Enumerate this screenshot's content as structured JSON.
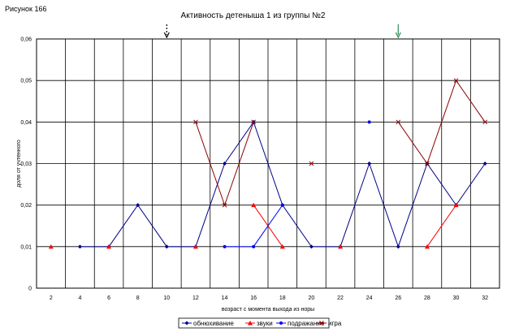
{
  "figure_label": "Рисунок 166",
  "chart_data": {
    "type": "line",
    "title": "Активность детеныша 1 из группы №2",
    "xlabel": "возраст с момента выхода из норы",
    "ylabel": "доля от учтенного",
    "categories": [
      "2",
      "4",
      "6",
      "8",
      "10",
      "12",
      "14",
      "16",
      "18",
      "20",
      "22",
      "24",
      "26",
      "28",
      "30",
      "32"
    ],
    "y_ticks": [
      "0",
      "0,01",
      "0,02",
      "0,03",
      "0,04",
      "0,05",
      "0,06"
    ],
    "ylim": [
      0,
      0.06
    ],
    "grid": true,
    "legend_position": "bottom",
    "series": [
      {
        "name": "обнюхивание",
        "color": "#00008b",
        "marker": "diamond",
        "values": [
          null,
          0.01,
          0.01,
          0.02,
          0.01,
          0.01,
          0.03,
          0.04,
          0.02,
          0.01,
          0.01,
          0.03,
          0.01,
          0.03,
          0.02,
          0.03
        ]
      },
      {
        "name": "звуки",
        "color": "#ff0000",
        "marker": "triangle",
        "values": [
          0.01,
          null,
          0.01,
          null,
          null,
          0.01,
          null,
          0.02,
          0.01,
          null,
          0.01,
          null,
          null,
          0.01,
          0.02,
          null
        ]
      },
      {
        "name": "подражание",
        "color": "#0000ff",
        "marker": "dot",
        "values": [
          null,
          null,
          null,
          null,
          null,
          null,
          0.01,
          0.01,
          0.02,
          null,
          null,
          0.04,
          null,
          null,
          null,
          null
        ]
      },
      {
        "name": "игра",
        "color": "#8b0000",
        "marker": "x",
        "values": [
          null,
          null,
          null,
          null,
          null,
          0.04,
          0.02,
          0.04,
          null,
          0.03,
          null,
          null,
          0.04,
          0.03,
          0.05,
          0.04
        ]
      }
    ],
    "arrows": [
      {
        "x": "10",
        "color": "#000000",
        "style": "dashed"
      },
      {
        "x": "26",
        "color": "#2e8b57",
        "style": "solid"
      }
    ]
  }
}
